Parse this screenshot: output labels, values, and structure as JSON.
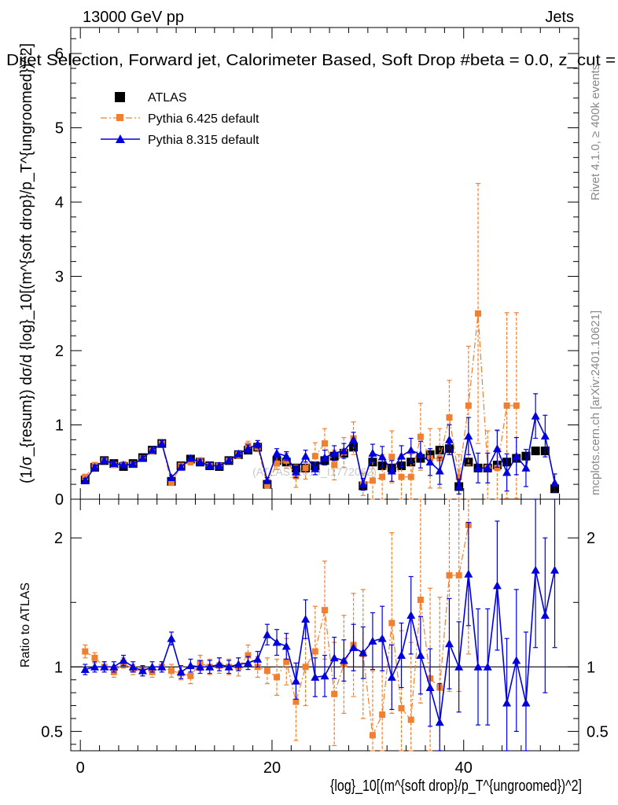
{
  "header": {
    "energy_label": "13000 GeV pp",
    "category_label": "Jets",
    "plot_title": "Dijet Selection, Forward jet, Calorimeter Based, Soft Drop #beta = 0.0, z_cut =",
    "side_label_rivet": "Rivet 4.1.0, ≥ 400k events",
    "side_label_mcplots": "mcplots.cern.ch [arXiv:2401.10621]",
    "watermark": "(ATLAS_2019_I1772062)"
  },
  "chart_data": {
    "type": "scatter",
    "title": "Dijet Selection, Forward jet, Calorimeter Based, Soft Drop #beta = 0.0, z_cut =",
    "xlabel": "{log}_10[(m^{soft drop}/p_T^{ungroomed})^2]",
    "ylabel": "(1/σ_{resum}) dσ/d {log}_10[(m^{soft drop}/p_T^{ungroomed})^2]",
    "ratio_ylabel": "Ratio to ATLAS",
    "xlim": [
      -1,
      52
    ],
    "ylim_main": [
      0,
      6.35
    ],
    "ylim_ratio": [
      0.35,
      2.3
    ],
    "x_ticks": [
      "0",
      "20",
      "40"
    ],
    "x_tick_values": [
      0,
      20,
      40
    ],
    "main_y_ticks": [
      "0",
      "1",
      "2",
      "3",
      "4",
      "5",
      "6"
    ],
    "main_y_tick_values": [
      0,
      1,
      2,
      3,
      4,
      5,
      6
    ],
    "ratio_y_ticks": [
      "0.5",
      "1",
      "2"
    ],
    "ratio_y_tick_values": [
      0.5,
      1,
      2
    ],
    "ratio_reference": 1,
    "legend_position": "top-left",
    "series": [
      {
        "name": "ATLAS",
        "color": "#000000",
        "marker": "square",
        "x": [
          0.5,
          1.5,
          2.5,
          3.5,
          4.5,
          5.5,
          6.5,
          7.5,
          8.5,
          9.5,
          10.5,
          11.5,
          12.5,
          13.5,
          14.5,
          15.5,
          16.5,
          17.5,
          18.5,
          19.5,
          20.5,
          21.5,
          22.5,
          23.5,
          24.5,
          25.5,
          26.5,
          27.5,
          28.5,
          29.5,
          30.5,
          31.5,
          32.5,
          33.5,
          34.5,
          35.5,
          36.5,
          37.5,
          38.5,
          39.5,
          40.5,
          41.5,
          42.5,
          43.5,
          44.5,
          45.5,
          46.5,
          47.5,
          48.5,
          49.5
        ],
        "values": [
          0.26,
          0.43,
          0.52,
          0.48,
          0.44,
          0.48,
          0.56,
          0.66,
          0.75,
          0.24,
          0.45,
          0.54,
          0.5,
          0.45,
          0.44,
          0.52,
          0.6,
          0.66,
          0.7,
          0.2,
          0.52,
          0.5,
          0.42,
          0.42,
          0.45,
          0.52,
          0.58,
          0.62,
          0.7,
          0.18,
          0.5,
          0.45,
          0.42,
          0.45,
          0.5,
          0.55,
          0.6,
          0.66,
          0.68,
          0.17,
          0.5,
          0.42,
          0.42,
          0.46,
          0.5,
          0.55,
          0.58,
          0.65,
          0.65,
          0.14
        ]
      },
      {
        "name": "Pythia 6.425 default",
        "color": "#f08030",
        "marker": "square",
        "line_style": "dash-dot",
        "x": [
          0.5,
          1.5,
          2.5,
          3.5,
          4.5,
          5.5,
          6.5,
          7.5,
          8.5,
          9.5,
          10.5,
          11.5,
          12.5,
          13.5,
          14.5,
          15.5,
          16.5,
          17.5,
          18.5,
          19.5,
          20.5,
          21.5,
          22.5,
          23.5,
          24.5,
          25.5,
          26.5,
          27.5,
          28.5,
          29.5,
          30.5,
          31.5,
          32.5,
          33.5,
          34.5,
          35.5,
          36.5,
          37.5,
          38.5,
          39.5,
          40.5,
          41.5,
          42.5,
          43.5,
          44.5,
          45.5
        ],
        "values": [
          0.3,
          0.46,
          0.52,
          0.46,
          0.47,
          0.47,
          0.55,
          0.65,
          0.75,
          0.22,
          0.45,
          0.5,
          0.52,
          0.45,
          0.45,
          0.52,
          0.6,
          0.72,
          0.7,
          0.19,
          0.48,
          0.52,
          0.31,
          0.42,
          0.58,
          0.75,
          0.46,
          0.63,
          0.82,
          0.2,
          0.25,
          0.3,
          0.57,
          0.3,
          0.3,
          0.84,
          0.55,
          0.55,
          1.1,
          0.3,
          1.26,
          2.5,
          0.42,
          0.42,
          1.26,
          1.26
        ],
        "yerr": [
          0.03,
          0.03,
          0.03,
          0.03,
          0.03,
          0.03,
          0.03,
          0.04,
          0.04,
          0.03,
          0.03,
          0.04,
          0.04,
          0.04,
          0.04,
          0.04,
          0.05,
          0.06,
          0.06,
          0.04,
          0.08,
          0.1,
          0.15,
          0.15,
          0.18,
          0.2,
          0.2,
          0.2,
          0.22,
          0.15,
          0.25,
          0.3,
          0.35,
          0.3,
          0.3,
          0.45,
          0.4,
          0.4,
          0.5,
          0.3,
          0.8,
          1.75,
          0.5,
          0.5,
          1.25,
          1.25
        ]
      },
      {
        "name": "Pythia 8.315 default",
        "color": "#0000dd",
        "marker": "triangle",
        "line_style": "solid",
        "x": [
          0.5,
          1.5,
          2.5,
          3.5,
          4.5,
          5.5,
          6.5,
          7.5,
          8.5,
          9.5,
          10.5,
          11.5,
          12.5,
          13.5,
          14.5,
          15.5,
          16.5,
          17.5,
          18.5,
          19.5,
          20.5,
          21.5,
          22.5,
          23.5,
          24.5,
          25.5,
          26.5,
          27.5,
          28.5,
          29.5,
          30.5,
          31.5,
          32.5,
          33.5,
          34.5,
          35.5,
          36.5,
          37.5,
          38.5,
          39.5,
          40.5,
          41.5,
          42.5,
          43.5,
          44.5,
          45.5,
          46.5,
          47.5,
          48.5,
          49.5
        ],
        "values": [
          0.25,
          0.43,
          0.52,
          0.48,
          0.46,
          0.47,
          0.55,
          0.66,
          0.75,
          0.29,
          0.43,
          0.55,
          0.5,
          0.45,
          0.45,
          0.52,
          0.61,
          0.68,
          0.74,
          0.25,
          0.62,
          0.58,
          0.37,
          0.58,
          0.41,
          0.56,
          0.62,
          0.65,
          0.8,
          0.2,
          0.62,
          0.57,
          0.38,
          0.58,
          0.66,
          0.6,
          0.5,
          0.38,
          0.8,
          0.17,
          0.85,
          0.42,
          0.42,
          0.68,
          0.36,
          0.58,
          0.42,
          1.12,
          0.85,
          0.22
        ],
        "yerr": [
          0.03,
          0.03,
          0.03,
          0.03,
          0.03,
          0.03,
          0.03,
          0.04,
          0.04,
          0.03,
          0.03,
          0.04,
          0.04,
          0.04,
          0.04,
          0.04,
          0.04,
          0.05,
          0.05,
          0.04,
          0.06,
          0.06,
          0.08,
          0.08,
          0.08,
          0.1,
          0.1,
          0.1,
          0.1,
          0.08,
          0.12,
          0.14,
          0.14,
          0.14,
          0.16,
          0.18,
          0.18,
          0.18,
          0.2,
          0.1,
          0.25,
          0.2,
          0.2,
          0.25,
          0.25,
          0.25,
          0.25,
          0.3,
          0.28,
          0.12
        ]
      }
    ]
  },
  "ratio_data": {
    "type": "scatter",
    "series": [
      {
        "name": "Pythia 6.425 default",
        "color": "#f08030",
        "x": [
          0.5,
          1.5,
          2.5,
          3.5,
          4.5,
          5.5,
          6.5,
          7.5,
          8.5,
          9.5,
          10.5,
          11.5,
          12.5,
          13.5,
          14.5,
          15.5,
          16.5,
          17.5,
          18.5,
          19.5,
          20.5,
          21.5,
          22.5,
          23.5,
          24.5,
          25.5,
          26.5,
          27.5,
          28.5,
          29.5,
          30.5,
          31.5,
          32.5,
          33.5,
          34.5,
          35.5,
          36.5,
          37.5,
          38.5,
          39.5,
          40.5
        ],
        "values": [
          1.12,
          1.07,
          1.0,
          0.96,
          1.03,
          0.98,
          0.97,
          0.96,
          1.0,
          0.97,
          0.95,
          0.93,
          1.03,
          1.0,
          1.01,
          1.0,
          1.0,
          1.09,
          1.0,
          0.97,
          0.92,
          1.04,
          0.73,
          1.0,
          1.12,
          1.44,
          0.79,
          1.02,
          1.17,
          1.1,
          0.47,
          0.63,
          1.34,
          0.68,
          0.59,
          1.52,
          0.91,
          0.84,
          1.71,
          1.71,
          2.1
        ],
        "yerr": [
          0.05,
          0.04,
          0.04,
          0.04,
          0.04,
          0.04,
          0.04,
          0.04,
          0.04,
          0.05,
          0.05,
          0.06,
          0.06,
          0.06,
          0.06,
          0.06,
          0.07,
          0.08,
          0.08,
          0.1,
          0.14,
          0.18,
          0.3,
          0.3,
          0.35,
          0.38,
          0.4,
          0.38,
          0.4,
          0.5,
          0.5,
          0.6,
          0.7,
          0.6,
          0.6,
          0.8,
          0.7,
          0.7,
          0.9,
          0.9,
          1.0
        ]
      },
      {
        "name": "Pythia 8.315 default",
        "color": "#0000dd",
        "x": [
          0.5,
          1.5,
          2.5,
          3.5,
          4.5,
          5.5,
          6.5,
          7.5,
          8.5,
          9.5,
          10.5,
          11.5,
          12.5,
          13.5,
          14.5,
          15.5,
          16.5,
          17.5,
          18.5,
          19.5,
          20.5,
          21.5,
          22.5,
          23.5,
          24.5,
          25.5,
          26.5,
          27.5,
          28.5,
          29.5,
          30.5,
          31.5,
          32.5,
          33.5,
          34.5,
          35.5,
          36.5,
          37.5,
          38.5,
          39.5,
          40.5,
          41.5,
          42.5,
          43.5,
          44.5,
          45.5,
          46.5,
          47.5,
          48.5,
          49.5
        ],
        "values": [
          0.98,
          1.0,
          1.0,
          1.0,
          1.05,
          1.0,
          0.97,
          1.0,
          1.0,
          1.22,
          0.96,
          1.01,
          1.0,
          1.0,
          1.02,
          1.0,
          1.02,
          1.03,
          1.06,
          1.25,
          1.19,
          1.16,
          0.89,
          1.37,
          0.92,
          0.93,
          1.07,
          1.05,
          1.15,
          1.11,
          1.2,
          1.22,
          0.92,
          1.09,
          1.4,
          1.09,
          0.84,
          0.57,
          1.18,
          1.0,
          1.72,
          1.0,
          1.0,
          1.63,
          0.72,
          1.05,
          0.72,
          1.75,
          1.4,
          1.75
        ],
        "yerr": [
          0.04,
          0.04,
          0.04,
          0.04,
          0.04,
          0.04,
          0.04,
          0.04,
          0.04,
          0.05,
          0.05,
          0.05,
          0.05,
          0.05,
          0.05,
          0.05,
          0.05,
          0.05,
          0.06,
          0.08,
          0.1,
          0.1,
          0.14,
          0.15,
          0.15,
          0.16,
          0.16,
          0.16,
          0.18,
          0.2,
          0.22,
          0.25,
          0.25,
          0.25,
          0.3,
          0.3,
          0.3,
          0.3,
          0.35,
          0.35,
          0.4,
          0.45,
          0.45,
          0.5,
          0.5,
          0.55,
          0.55,
          0.6,
          0.6,
          0.6
        ]
      }
    ]
  }
}
